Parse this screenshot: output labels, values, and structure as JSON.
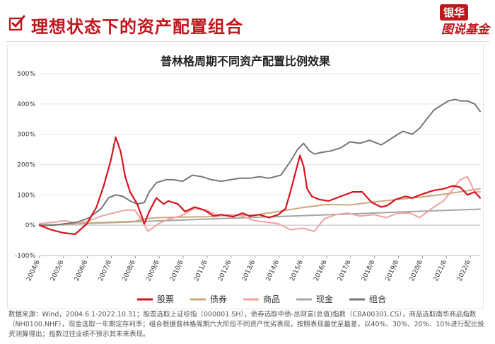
{
  "header": {
    "title": "理想状态下的资产配置组合",
    "logo_top": "银华",
    "logo_bottom": "图说基金"
  },
  "colors": {
    "accent": "#c0161d",
    "stock": "#d7141e",
    "bond": "#c9a97a",
    "commodity": "#f0a0a0",
    "cash": "#a6a6a6",
    "portfolio": "#777777"
  },
  "chart_data": {
    "type": "line",
    "title": "普林格周期不同资产配置比例效果",
    "ylim": [
      -100,
      500
    ],
    "y_ticks": [
      "-100%",
      "0%",
      "100%",
      "200%",
      "300%",
      "400%",
      "500%"
    ],
    "y_tick_values": [
      -100,
      0,
      100,
      200,
      300,
      400,
      500
    ],
    "x_ticks": [
      "2004/6",
      "2005/6",
      "2006/6",
      "2007/6",
      "2008/6",
      "2009/6",
      "2010/6",
      "2011/6",
      "2012/6",
      "2013/6",
      "2014/6",
      "2015/6",
      "2016/6",
      "2017/6",
      "2018/6",
      "2019/6",
      "2020/6",
      "2021/6",
      "2022/6"
    ],
    "x_tick_values": [
      2004.42,
      2005.42,
      2006.42,
      2007.42,
      2008.42,
      2009.42,
      2010.42,
      2011.42,
      2012.42,
      2013.42,
      2014.42,
      2015.42,
      2016.42,
      2017.42,
      2018.42,
      2019.42,
      2020.42,
      2021.42,
      2022.42
    ],
    "xlim": [
      2004.42,
      2022.83
    ],
    "legend_position": "bottom",
    "series": [
      {
        "name": "股票",
        "color_key": "stock",
        "x": [
          2004.42,
          2004.9,
          2005.4,
          2005.9,
          2006.4,
          2006.8,
          2007.1,
          2007.4,
          2007.6,
          2007.8,
          2008.0,
          2008.2,
          2008.5,
          2008.8,
          2009.0,
          2009.3,
          2009.6,
          2009.8,
          2010.2,
          2010.5,
          2010.9,
          2011.3,
          2011.7,
          2012.0,
          2012.5,
          2012.9,
          2013.2,
          2013.6,
          2014.0,
          2014.4,
          2014.7,
          2014.9,
          2015.1,
          2015.3,
          2015.45,
          2015.6,
          2015.8,
          2016.1,
          2016.5,
          2017.0,
          2017.5,
          2017.9,
          2018.3,
          2018.7,
          2018.95,
          2019.3,
          2019.7,
          2020.0,
          2020.5,
          2020.9,
          2021.3,
          2021.7,
          2022.0,
          2022.3,
          2022.6,
          2022.83
        ],
        "y": [
          0,
          -15,
          -25,
          -30,
          5,
          60,
          130,
          215,
          290,
          245,
          160,
          110,
          70,
          5,
          45,
          90,
          70,
          80,
          70,
          45,
          60,
          50,
          30,
          35,
          28,
          40,
          30,
          35,
          25,
          35,
          55,
          110,
          170,
          230,
          195,
          120,
          95,
          85,
          80,
          95,
          110,
          110,
          75,
          60,
          65,
          85,
          95,
          90,
          105,
          115,
          120,
          130,
          125,
          100,
          110,
          90
        ]
      },
      {
        "name": "债券",
        "color_key": "bond",
        "x": [
          2004.42,
          2005.4,
          2006.4,
          2007.4,
          2008.4,
          2008.9,
          2009.4,
          2010.4,
          2011.4,
          2012.4,
          2013.4,
          2014.4,
          2015.4,
          2016.4,
          2017.4,
          2018.4,
          2019.4,
          2020.4,
          2021.4,
          2022.4,
          2022.83
        ],
        "y": [
          0,
          3,
          7,
          10,
          13,
          22,
          25,
          27,
          28,
          33,
          33,
          45,
          58,
          68,
          67,
          77,
          85,
          93,
          103,
          115,
          120
        ]
      },
      {
        "name": "商品",
        "color_key": "commodity",
        "x": [
          2004.42,
          2005.0,
          2005.5,
          2006.0,
          2006.5,
          2007.0,
          2007.5,
          2008.0,
          2008.4,
          2008.7,
          2008.95,
          2009.4,
          2009.8,
          2010.3,
          2010.9,
          2011.4,
          2011.9,
          2012.4,
          2012.9,
          2013.4,
          2013.9,
          2014.4,
          2014.9,
          2015.4,
          2015.9,
          2016.3,
          2016.8,
          2017.3,
          2017.8,
          2018.4,
          2018.9,
          2019.4,
          2019.9,
          2020.3,
          2020.8,
          2021.3,
          2021.7,
          2022.0,
          2022.3,
          2022.6,
          2022.83
        ],
        "y": [
          5,
          10,
          15,
          5,
          15,
          30,
          40,
          50,
          50,
          15,
          -20,
          5,
          20,
          30,
          55,
          50,
          30,
          35,
          30,
          15,
          10,
          5,
          -15,
          -10,
          -20,
          20,
          35,
          40,
          30,
          35,
          25,
          40,
          40,
          25,
          55,
          80,
          120,
          150,
          160,
          110,
          110
        ]
      },
      {
        "name": "现金",
        "color_key": "cash",
        "x": [
          2004.42,
          2008.0,
          2012.0,
          2016.0,
          2020.0,
          2022.83
        ],
        "y": [
          0,
          10,
          22,
          33,
          45,
          53
        ]
      },
      {
        "name": "组合",
        "color_key": "portfolio",
        "x": [
          2004.42,
          2005.0,
          2005.5,
          2006.0,
          2006.5,
          2007.0,
          2007.3,
          2007.6,
          2007.9,
          2008.2,
          2008.5,
          2008.8,
          2009.0,
          2009.3,
          2009.7,
          2010.0,
          2010.4,
          2010.8,
          2011.2,
          2011.6,
          2012.0,
          2012.4,
          2012.8,
          2013.2,
          2013.6,
          2014.0,
          2014.5,
          2014.9,
          2015.2,
          2015.45,
          2015.7,
          2015.9,
          2016.2,
          2016.6,
          2017.0,
          2017.4,
          2017.8,
          2018.2,
          2018.7,
          2019.2,
          2019.6,
          2020.0,
          2020.3,
          2020.6,
          2020.9,
          2021.2,
          2021.5,
          2021.8,
          2022.0,
          2022.3,
          2022.6,
          2022.83
        ],
        "y": [
          0,
          0,
          5,
          10,
          25,
          55,
          90,
          100,
          95,
          80,
          70,
          75,
          110,
          140,
          150,
          150,
          145,
          165,
          160,
          150,
          145,
          150,
          155,
          155,
          160,
          155,
          165,
          210,
          250,
          270,
          245,
          235,
          240,
          245,
          255,
          275,
          270,
          280,
          265,
          290,
          310,
          300,
          320,
          350,
          380,
          395,
          410,
          415,
          410,
          410,
          400,
          375
        ]
      }
    ]
  },
  "source_note": "数据来源：Wind，2004.6.1-2022.10.31；股票选取上证综指（000001.SH），债券选取中债-总财富(总值)指数（CBA00301.CS），商品选取南华商品指数（NH0100.NHF），现金选取一年期定存利率；组合根据普林格周期六大阶段不同资产优劣表现，按照表现最优至最差，以40%、30%、20%、10%进行配比投资测算得出；指数过往业绩不预示其未来表现。"
}
